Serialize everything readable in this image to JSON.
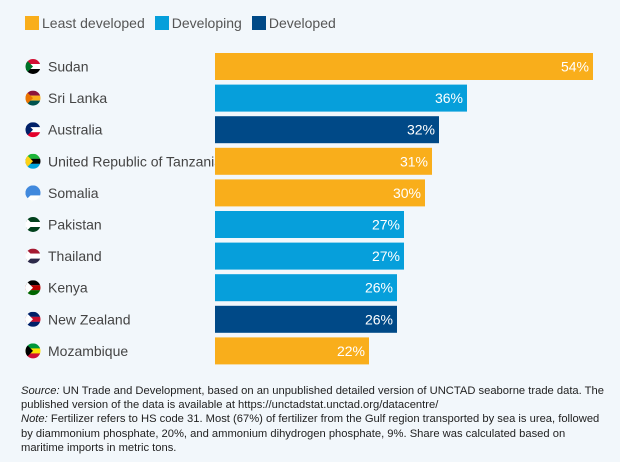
{
  "chart_data": {
    "type": "bar",
    "orientation": "horizontal",
    "categories": [
      "Sudan",
      "Sri Lanka",
      "Australia",
      "United Republic of Tanzania",
      "Somalia",
      "Pakistan",
      "Thailand",
      "Kenya",
      "New Zealand",
      "Mozambique"
    ],
    "values": [
      54,
      36,
      32,
      31,
      30,
      27,
      27,
      26,
      26,
      22
    ],
    "groups": [
      "Least developed",
      "Developing",
      "Developed",
      "Least developed",
      "Least developed",
      "Developing",
      "Developing",
      "Developing",
      "Developed",
      "Least developed"
    ],
    "data_labels": [
      "54%",
      "36%",
      "32%",
      "31%",
      "30%",
      "27%",
      "27%",
      "26%",
      "26%",
      "22%"
    ],
    "legend": [
      {
        "name": "Least developed",
        "color": "#f9ae1b"
      },
      {
        "name": "Developing",
        "color": "#069fdb"
      },
      {
        "name": "Developed",
        "color": "#004987"
      }
    ],
    "legend_position": "top-left",
    "xlim": [
      0,
      54
    ],
    "grid": false
  },
  "notes": {
    "source_label": "Source:",
    "source_text": " UN Trade and Development, based on an unpublished detailed version of UNCTAD seaborne trade data. The published version of the data is available at https://unctadstat.unctad.org/datacentre/",
    "note_label": "Note:",
    "note_text": " Fertilizer refers to HS code 31. Most (67%) of fertilizer from the Gulf region transported by sea is urea, followed by diammonium phosphate, 20%, and ammonium dihydrogen phosphate, 9%. Share was calculated based on maritime imports in metric tons."
  }
}
